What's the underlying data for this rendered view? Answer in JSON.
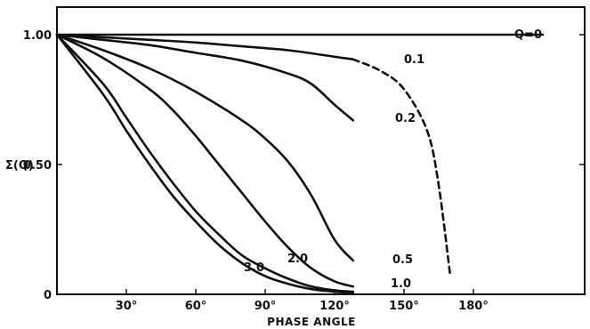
{
  "chart_data": {
    "type": "line",
    "title": "",
    "xlabel": "PHASE ANGLE",
    "ylabel": "Σ(Q)",
    "xlim": [
      0,
      210
    ],
    "ylim": [
      0,
      1.0
    ],
    "grid": false,
    "x_ticks": [
      {
        "value": 30,
        "label": "30°"
      },
      {
        "value": 60,
        "label": "60°"
      },
      {
        "value": 90,
        "label": "90°"
      },
      {
        "value": 120,
        "label": "120°"
      },
      {
        "value": 150,
        "label": "150°"
      },
      {
        "value": 180,
        "label": "180°"
      }
    ],
    "y_ticks": [
      {
        "value": 1.0,
        "label": "1.00"
      },
      {
        "value": 0.5,
        "label": "0.50"
      },
      {
        "value": 0,
        "label": "0"
      }
    ],
    "series": [
      {
        "name": "Q=0",
        "label": "Q=0",
        "x": [
          0,
          60,
          120,
          180,
          210
        ],
        "y": [
          1.0,
          1.0,
          1.0,
          1.0,
          1.0
        ]
      },
      {
        "name": "0.1",
        "label": "0.1",
        "x": [
          0,
          20,
          40,
          60,
          80,
          100,
          120,
          128
        ],
        "y": [
          1.0,
          0.99,
          0.98,
          0.97,
          0.955,
          0.94,
          0.915,
          0.905
        ]
      },
      {
        "name": "0.1 (extrapolated)",
        "style": "dashed",
        "x": [
          128,
          140,
          150,
          160,
          165,
          170
        ],
        "y": [
          0.905,
          0.86,
          0.79,
          0.63,
          0.42,
          0.07
        ]
      },
      {
        "name": "0.2",
        "label": "0.2",
        "x": [
          0,
          20,
          40,
          60,
          80,
          100,
          110,
          120,
          128
        ],
        "y": [
          1.0,
          0.98,
          0.96,
          0.93,
          0.9,
          0.85,
          0.81,
          0.73,
          0.67
        ]
      },
      {
        "name": "0.5",
        "label": "0.5",
        "x": [
          0,
          20,
          40,
          60,
          80,
          90,
          100,
          110,
          120,
          128
        ],
        "y": [
          1.0,
          0.94,
          0.87,
          0.78,
          0.67,
          0.6,
          0.51,
          0.38,
          0.21,
          0.13
        ]
      },
      {
        "name": "1.0",
        "label": "1.0",
        "x": [
          0,
          20,
          40,
          50,
          60,
          70,
          80,
          90,
          100,
          110,
          120,
          128
        ],
        "y": [
          1.0,
          0.91,
          0.79,
          0.71,
          0.61,
          0.5,
          0.39,
          0.28,
          0.18,
          0.1,
          0.05,
          0.03
        ]
      },
      {
        "name": "2.0",
        "label": "2.0",
        "x": [
          0,
          20,
          30,
          40,
          50,
          60,
          70,
          80,
          90,
          100,
          110,
          120,
          128
        ],
        "y": [
          1.0,
          0.81,
          0.68,
          0.55,
          0.43,
          0.32,
          0.23,
          0.15,
          0.1,
          0.06,
          0.03,
          0.015,
          0.01
        ]
      },
      {
        "name": "3.0",
        "label": "3.0",
        "x": [
          0,
          20,
          30,
          40,
          50,
          60,
          70,
          80,
          90,
          100,
          110,
          120,
          128
        ],
        "y": [
          1.0,
          0.77,
          0.63,
          0.5,
          0.38,
          0.28,
          0.19,
          0.12,
          0.07,
          0.04,
          0.02,
          0.01,
          0.005
        ]
      }
    ]
  }
}
